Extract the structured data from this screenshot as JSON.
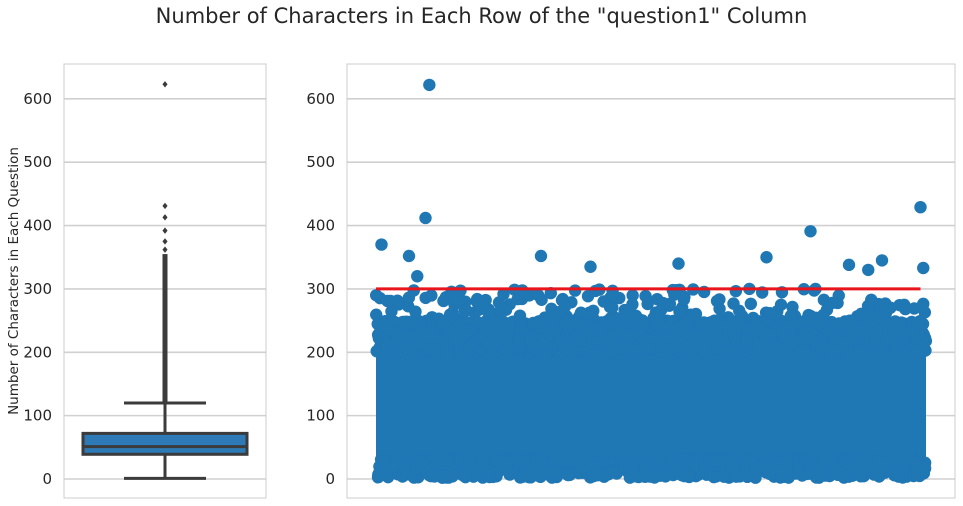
{
  "suptitle": "Number of Characters in Each Row of the \"question1\" Column",
  "colors": {
    "box_fill": "#2d7ab6",
    "box_line": "#3b3b3b",
    "scatter": "#1f77b4",
    "threshold": "#e8151c",
    "grid": "#d0d0d0",
    "spine": "#cccccc"
  },
  "chart_data": [
    {
      "type": "box",
      "title": "",
      "xlabel": "",
      "ylabel": "Number of Characters in Each Question",
      "ylim": [
        -30,
        655
      ],
      "yticks": [
        0,
        100,
        200,
        300,
        400,
        500,
        600
      ],
      "grid": true,
      "box": {
        "whisker_low": 1,
        "q1": 39,
        "median": 51,
        "q3": 72,
        "whisker_high": 120,
        "outliers_dense_range": [
          121,
          355
        ],
        "outliers": [
          362,
          375,
          392,
          413,
          431,
          623
        ]
      }
    },
    {
      "type": "scatter",
      "title": "",
      "xlabel": "",
      "ylabel": "",
      "ylim": [
        -30,
        655
      ],
      "yticks": [
        0,
        100,
        200,
        300,
        400,
        500,
        600
      ],
      "grid": true,
      "bulk": {
        "y_dense_range": [
          10,
          240
        ],
        "y_sparse_range": [
          240,
          300
        ]
      },
      "points": [
        {
          "x": 0.01,
          "y": 370
        },
        {
          "x": 0.06,
          "y": 352
        },
        {
          "x": 0.075,
          "y": 320
        },
        {
          "x": 0.09,
          "y": 412
        },
        {
          "x": 0.097,
          "y": 622
        },
        {
          "x": 0.3,
          "y": 352
        },
        {
          "x": 0.39,
          "y": 335
        },
        {
          "x": 0.55,
          "y": 340
        },
        {
          "x": 0.71,
          "y": 350
        },
        {
          "x": 0.79,
          "y": 391
        },
        {
          "x": 0.86,
          "y": 338
        },
        {
          "x": 0.895,
          "y": 330
        },
        {
          "x": 0.92,
          "y": 345
        },
        {
          "x": 0.99,
          "y": 429
        },
        {
          "x": 0.995,
          "y": 333
        }
      ],
      "threshold_line": {
        "y": 300,
        "x_range": [
          0.0,
          0.99
        ]
      }
    }
  ]
}
